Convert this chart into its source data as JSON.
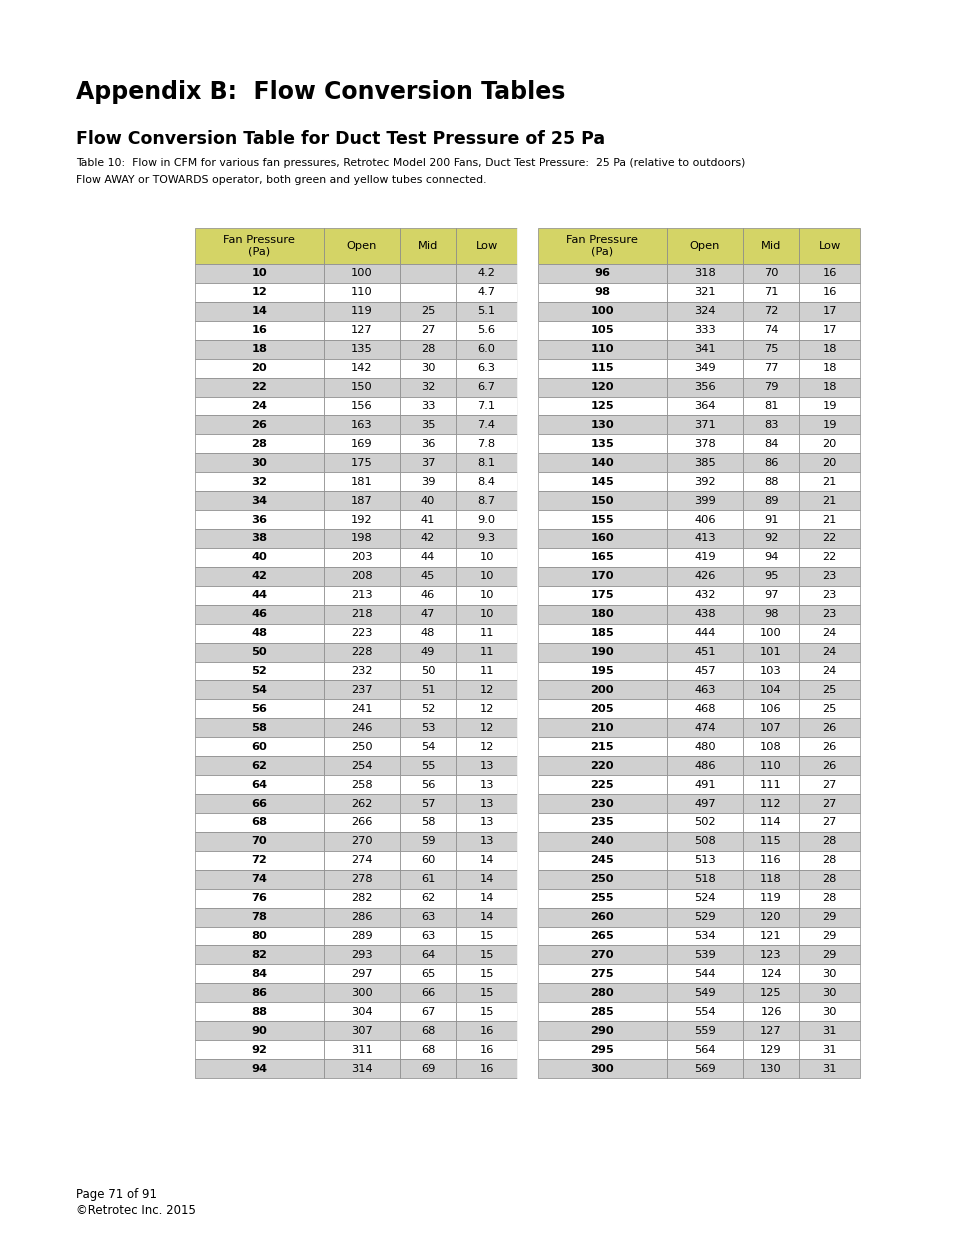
{
  "title": "Appendix B:  Flow Conversion Tables",
  "subtitle": "Flow Conversion Table for Duct Test Pressure of 25 Pa",
  "table_note1": "Table 10:  Flow in CFM for various fan pressures, Retrotec Model 200 Fans, Duct Test Pressure:  25 Pa (relative to outdoors)",
  "table_note2": "Flow AWAY or TOWARDS operator, both green and yellow tubes connected.",
  "footer1": "Page 71 of 91",
  "footer2": "©Retrotec Inc. 2015",
  "header_color": "#d4d466",
  "even_color": "#d0d0d0",
  "odd_color": "#ffffff",
  "border_color": "#999999",
  "rows": [
    [
      "10",
      "100",
      "",
      "4.2",
      "96",
      "318",
      "70",
      "16"
    ],
    [
      "12",
      "110",
      "",
      "4.7",
      "98",
      "321",
      "71",
      "16"
    ],
    [
      "14",
      "119",
      "25",
      "5.1",
      "100",
      "324",
      "72",
      "17"
    ],
    [
      "16",
      "127",
      "27",
      "5.6",
      "105",
      "333",
      "74",
      "17"
    ],
    [
      "18",
      "135",
      "28",
      "6.0",
      "110",
      "341",
      "75",
      "18"
    ],
    [
      "20",
      "142",
      "30",
      "6.3",
      "115",
      "349",
      "77",
      "18"
    ],
    [
      "22",
      "150",
      "32",
      "6.7",
      "120",
      "356",
      "79",
      "18"
    ],
    [
      "24",
      "156",
      "33",
      "7.1",
      "125",
      "364",
      "81",
      "19"
    ],
    [
      "26",
      "163",
      "35",
      "7.4",
      "130",
      "371",
      "83",
      "19"
    ],
    [
      "28",
      "169",
      "36",
      "7.8",
      "135",
      "378",
      "84",
      "20"
    ],
    [
      "30",
      "175",
      "37",
      "8.1",
      "140",
      "385",
      "86",
      "20"
    ],
    [
      "32",
      "181",
      "39",
      "8.4",
      "145",
      "392",
      "88",
      "21"
    ],
    [
      "34",
      "187",
      "40",
      "8.7",
      "150",
      "399",
      "89",
      "21"
    ],
    [
      "36",
      "192",
      "41",
      "9.0",
      "155",
      "406",
      "91",
      "21"
    ],
    [
      "38",
      "198",
      "42",
      "9.3",
      "160",
      "413",
      "92",
      "22"
    ],
    [
      "40",
      "203",
      "44",
      "10",
      "165",
      "419",
      "94",
      "22"
    ],
    [
      "42",
      "208",
      "45",
      "10",
      "170",
      "426",
      "95",
      "23"
    ],
    [
      "44",
      "213",
      "46",
      "10",
      "175",
      "432",
      "97",
      "23"
    ],
    [
      "46",
      "218",
      "47",
      "10",
      "180",
      "438",
      "98",
      "23"
    ],
    [
      "48",
      "223",
      "48",
      "11",
      "185",
      "444",
      "100",
      "24"
    ],
    [
      "50",
      "228",
      "49",
      "11",
      "190",
      "451",
      "101",
      "24"
    ],
    [
      "52",
      "232",
      "50",
      "11",
      "195",
      "457",
      "103",
      "24"
    ],
    [
      "54",
      "237",
      "51",
      "12",
      "200",
      "463",
      "104",
      "25"
    ],
    [
      "56",
      "241",
      "52",
      "12",
      "205",
      "468",
      "106",
      "25"
    ],
    [
      "58",
      "246",
      "53",
      "12",
      "210",
      "474",
      "107",
      "26"
    ],
    [
      "60",
      "250",
      "54",
      "12",
      "215",
      "480",
      "108",
      "26"
    ],
    [
      "62",
      "254",
      "55",
      "13",
      "220",
      "486",
      "110",
      "26"
    ],
    [
      "64",
      "258",
      "56",
      "13",
      "225",
      "491",
      "111",
      "27"
    ],
    [
      "66",
      "262",
      "57",
      "13",
      "230",
      "497",
      "112",
      "27"
    ],
    [
      "68",
      "266",
      "58",
      "13",
      "235",
      "502",
      "114",
      "27"
    ],
    [
      "70",
      "270",
      "59",
      "13",
      "240",
      "508",
      "115",
      "28"
    ],
    [
      "72",
      "274",
      "60",
      "14",
      "245",
      "513",
      "116",
      "28"
    ],
    [
      "74",
      "278",
      "61",
      "14",
      "250",
      "518",
      "118",
      "28"
    ],
    [
      "76",
      "282",
      "62",
      "14",
      "255",
      "524",
      "119",
      "28"
    ],
    [
      "78",
      "286",
      "63",
      "14",
      "260",
      "529",
      "120",
      "29"
    ],
    [
      "80",
      "289",
      "63",
      "15",
      "265",
      "534",
      "121",
      "29"
    ],
    [
      "82",
      "293",
      "64",
      "15",
      "270",
      "539",
      "123",
      "29"
    ],
    [
      "84",
      "297",
      "65",
      "15",
      "275",
      "544",
      "124",
      "30"
    ],
    [
      "86",
      "300",
      "66",
      "15",
      "280",
      "549",
      "125",
      "30"
    ],
    [
      "88",
      "304",
      "67",
      "15",
      "285",
      "554",
      "126",
      "30"
    ],
    [
      "90",
      "307",
      "68",
      "16",
      "290",
      "559",
      "127",
      "31"
    ],
    [
      "92",
      "311",
      "68",
      "16",
      "295",
      "564",
      "129",
      "31"
    ],
    [
      "94",
      "314",
      "69",
      "16",
      "300",
      "569",
      "130",
      "31"
    ]
  ]
}
